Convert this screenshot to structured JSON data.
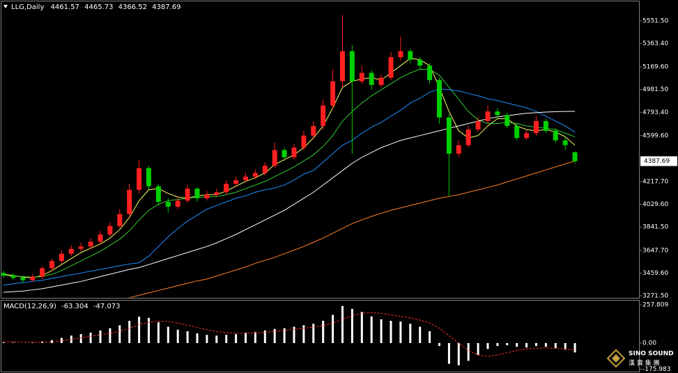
{
  "chart_data": [
    {
      "type": "candlestick",
      "symbol": "LLG,Daily",
      "open": [
        3460,
        3440,
        3420,
        3400,
        3430,
        3500,
        3560,
        3620,
        3660,
        3680,
        3720,
        3780,
        3850,
        3950,
        4150,
        4330,
        4180,
        4050,
        4010,
        4060,
        4160,
        4080,
        4110,
        4130,
        4200,
        4230,
        4260,
        4290,
        4350,
        4480,
        4420,
        4500,
        4600,
        4680,
        4850,
        5050,
        5300,
        5050,
        5120,
        5020,
        5080,
        5250,
        5300,
        5230,
        5180,
        5060,
        4750,
        4450,
        4520,
        4650,
        4720,
        4800,
        4770,
        4680,
        4580,
        4620,
        4720,
        4640,
        4560,
        4461.57
      ],
      "high": [
        3480,
        3460,
        3440,
        3450,
        3520,
        3580,
        3650,
        3690,
        3710,
        3750,
        3810,
        3880,
        3990,
        4200,
        4400,
        4350,
        4200,
        4080,
        4090,
        4190,
        4170,
        4140,
        4160,
        4230,
        4260,
        4290,
        4320,
        4380,
        4540,
        4500,
        4530,
        4640,
        4720,
        4900,
        5150,
        5600,
        5350,
        5180,
        5140,
        5110,
        5290,
        5420,
        5320,
        5250,
        5200,
        5080,
        4780,
        4560,
        4680,
        4760,
        4850,
        4830,
        4790,
        4700,
        4650,
        4760,
        4740,
        4660,
        4590,
        4465.73
      ],
      "low": [
        3420,
        3400,
        3380,
        3390,
        3410,
        3480,
        3540,
        3600,
        3640,
        3660,
        3700,
        3760,
        3830,
        3920,
        4120,
        4150,
        4020,
        3960,
        3990,
        4040,
        4050,
        4060,
        4090,
        4110,
        4180,
        4210,
        4240,
        4270,
        4330,
        4390,
        4400,
        4480,
        4570,
        4650,
        4820,
        5000,
        4450,
        5030,
        4980,
        5000,
        5060,
        5220,
        5200,
        5150,
        5030,
        4700,
        4100,
        4420,
        4500,
        4630,
        4700,
        4740,
        4660,
        4560,
        4560,
        4600,
        4620,
        4540,
        4480,
        4366.52
      ],
      "close": [
        3440,
        3420,
        3400,
        3430,
        3500,
        3560,
        3620,
        3660,
        3680,
        3720,
        3780,
        3850,
        3950,
        4150,
        4330,
        4180,
        4050,
        4010,
        4060,
        4160,
        4080,
        4110,
        4130,
        4200,
        4230,
        4260,
        4290,
        4350,
        4480,
        4420,
        4500,
        4600,
        4680,
        4850,
        5050,
        5300,
        5050,
        5120,
        5020,
        5080,
        5250,
        5300,
        5230,
        5180,
        5060,
        4750,
        4450,
        4520,
        4650,
        4720,
        4800,
        4770,
        4680,
        4580,
        4620,
        4720,
        4640,
        4560,
        4520,
        4387.69
      ],
      "up_color": "#ff2020",
      "down_color": "#00d000",
      "series": [
        {
          "color": "#ffff66",
          "values": [
            3450,
            3440,
            3425,
            3420,
            3440,
            3480,
            3530,
            3580,
            3630,
            3665,
            3700,
            3750,
            3820,
            3920,
            4060,
            4150,
            4160,
            4120,
            4090,
            4080,
            4100,
            4110,
            4110,
            4140,
            4180,
            4220,
            4250,
            4290,
            4360,
            4400,
            4440,
            4500,
            4580,
            4680,
            4830,
            5000,
            5050,
            5070,
            5080,
            5060,
            5120,
            5180,
            5240,
            5230,
            5180,
            5000,
            4800,
            4640,
            4580,
            4600,
            4680,
            4740,
            4740,
            4680,
            4650,
            4640,
            4650,
            4630,
            4590,
            4520
          ]
        },
        {
          "color": "#33cc33",
          "values": [
            3440,
            3435,
            3430,
            3425,
            3430,
            3450,
            3480,
            3520,
            3560,
            3600,
            3640,
            3690,
            3740,
            3810,
            3900,
            3980,
            4030,
            4060,
            4070,
            4080,
            4090,
            4090,
            4095,
            4110,
            4130,
            4160,
            4190,
            4220,
            4260,
            4300,
            4340,
            4390,
            4440,
            4510,
            4600,
            4720,
            4800,
            4870,
            4930,
            4980,
            5030,
            5080,
            5120,
            5150,
            5150,
            5100,
            5000,
            4900,
            4800,
            4730,
            4700,
            4700,
            4710,
            4700,
            4680,
            4670,
            4660,
            4650,
            4620,
            4590
          ]
        },
        {
          "color": "#1e90ff",
          "values": [
            3360,
            3370,
            3380,
            3390,
            3400,
            3415,
            3430,
            3445,
            3460,
            3475,
            3490,
            3505,
            3520,
            3535,
            3545,
            3600,
            3680,
            3760,
            3830,
            3890,
            3940,
            3990,
            4020,
            4050,
            4080,
            4100,
            4130,
            4150,
            4165,
            4190,
            4230,
            4280,
            4310,
            4380,
            4450,
            4520,
            4560,
            4620,
            4670,
            4710,
            4760,
            4810,
            4870,
            4910,
            4960,
            4986,
            4980,
            4970,
            4950,
            4930,
            4905,
            4890,
            4870,
            4850,
            4830,
            4800,
            4760,
            4720,
            4680,
            4628
          ]
        },
        {
          "color": "#ffffff",
          "values": [
            3300,
            3305,
            3310,
            3320,
            3330,
            3345,
            3360,
            3375,
            3390,
            3410,
            3430,
            3450,
            3470,
            3490,
            3505,
            3530,
            3555,
            3580,
            3605,
            3630,
            3655,
            3680,
            3710,
            3745,
            3780,
            3820,
            3860,
            3900,
            3940,
            3980,
            4030,
            4080,
            4130,
            4190,
            4250,
            4310,
            4370,
            4420,
            4460,
            4500,
            4530,
            4560,
            4580,
            4600,
            4620,
            4640,
            4660,
            4680,
            4700,
            4720,
            4740,
            4755,
            4765,
            4775,
            4785,
            4790,
            4795,
            4798,
            4800,
            4801
          ]
        },
        {
          "color": "#ff7f27",
          "values": [
            null,
            null,
            null,
            null,
            null,
            null,
            null,
            null,
            null,
            null,
            null,
            null,
            null,
            3255,
            3275,
            3295,
            3315,
            3335,
            3355,
            3375,
            3395,
            3410,
            3435,
            3460,
            3485,
            3510,
            3540,
            3565,
            3590,
            3620,
            3650,
            3680,
            3715,
            3750,
            3790,
            3830,
            3870,
            3900,
            3930,
            3955,
            3980,
            4000,
            4020,
            4040,
            4060,
            4080,
            4095,
            4110,
            4130,
            4150,
            4170,
            4190,
            4215,
            4240,
            4265,
            4290,
            4315,
            4340,
            4365,
            4390
          ]
        }
      ],
      "ylim": [
        3254,
        5713
      ],
      "yticks": [
        {
          "value": 5551.5,
          "label": "5551.50"
        },
        {
          "value": 5363.4,
          "label": "5363.40"
        },
        {
          "value": 5169.6,
          "label": "5169.60"
        },
        {
          "value": 4981.5,
          "label": "4981.50"
        },
        {
          "value": 4793.4,
          "label": "4793.40"
        },
        {
          "value": 4599.6,
          "label": "4599.60"
        },
        {
          "value": 4217.7,
          "label": "4217.70"
        },
        {
          "value": 4029.6,
          "label": "4029.60"
        },
        {
          "value": 3841.5,
          "label": "3841.50"
        },
        {
          "value": 3647.7,
          "label": "3647.70"
        },
        {
          "value": 3459.6,
          "label": "3459.60"
        },
        {
          "value": 3271.5,
          "label": "3271.50"
        }
      ],
      "grid": false
    },
    {
      "type": "macd",
      "title": "MACD(12,26,9)",
      "values": [
        5,
        3,
        0,
        2,
        10,
        20,
        35,
        50,
        60,
        70,
        85,
        100,
        120,
        150,
        178,
        170,
        140,
        110,
        90,
        80,
        65,
        55,
        50,
        55,
        60,
        70,
        75,
        85,
        95,
        100,
        110,
        120,
        130,
        150,
        190,
        250,
        230,
        210,
        180,
        160,
        150,
        145,
        130,
        110,
        80,
        -20,
        -140,
        -150,
        -120,
        -80,
        -40,
        -20,
        -15,
        -25,
        -30,
        -20,
        -25,
        -35,
        -45,
        -63.304
      ],
      "signal": [
        10,
        8,
        6,
        5,
        5,
        8,
        15,
        25,
        35,
        45,
        55,
        65,
        80,
        100,
        125,
        140,
        148,
        145,
        135,
        120,
        105,
        90,
        78,
        70,
        66,
        66,
        68,
        72,
        78,
        85,
        92,
        100,
        108,
        118,
        135,
        160,
        185,
        200,
        205,
        200,
        190,
        180,
        170,
        155,
        135,
        100,
        50,
        0,
        -50,
        -80,
        -90,
        -80,
        -65,
        -50,
        -40,
        -35,
        -33,
        -35,
        -40,
        -47.073
      ],
      "color": "#ffffff",
      "signal_color": "#ff3030",
      "ylim": [
        -202,
        286
      ],
      "yticks": [
        257.809,
        {
          "value": 0,
          "label": "0.00"
        },
        -175.983
      ]
    }
  ],
  "logo": {
    "name": "SINO SOUND",
    "chinese": "漢 寶 集 團"
  }
}
